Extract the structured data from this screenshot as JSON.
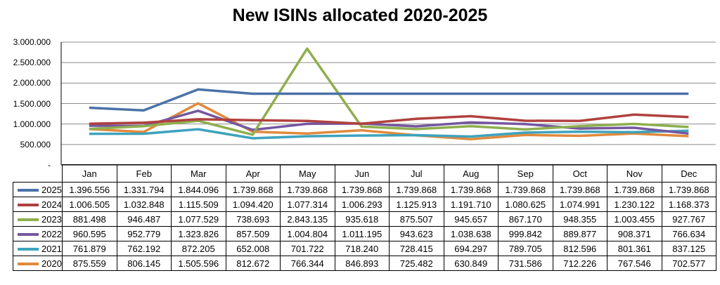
{
  "chart_data": {
    "type": "line",
    "title": "New ISINs allocated 2020-2025",
    "categories": [
      "Jan",
      "Feb",
      "Mar",
      "Apr",
      "May",
      "Jun",
      "Jul",
      "Aug",
      "Sep",
      "Oct",
      "Nov",
      "Dec"
    ],
    "ylim": [
      0,
      3000000
    ],
    "yticks": [
      0,
      500000,
      1000000,
      1500000,
      2000000,
      2500000,
      3000000
    ],
    "ytick_labels": [
      "-",
      "500.000",
      "1.000.000",
      "1.500.000",
      "2.000.000",
      "2.500.000",
      "3.000.000"
    ],
    "grid": true,
    "legend": "table",
    "series": [
      {
        "name": "2025",
        "color": "#4a72a8",
        "values": [
          1396556,
          1331794,
          1844096,
          1739868,
          1739868,
          1739868,
          1739868,
          1739868,
          1739868,
          1739868,
          1739868,
          1739868
        ],
        "labels": [
          "1.396.556",
          "1.331.794",
          "1.844.096",
          "1.739.868",
          "1.739.868",
          "1.739.868",
          "1.739.868",
          "1.739.868",
          "1.739.868",
          "1.739.868",
          "1.739.868",
          "1.739.868"
        ]
      },
      {
        "name": "2024",
        "color": "#b0413e",
        "values": [
          1006505,
          1032848,
          1115509,
          1094420,
          1077314,
          1006293,
          1125913,
          1191710,
          1080625,
          1074991,
          1230122,
          1168373
        ],
        "labels": [
          "1.006.505",
          "1.032.848",
          "1.115.509",
          "1.094.420",
          "1.077.314",
          "1.006.293",
          "1.125.913",
          "1.191.710",
          "1.080.625",
          "1.074.991",
          "1.230.122",
          "1.168.373"
        ]
      },
      {
        "name": "2023",
        "color": "#8eaf4e",
        "values": [
          881498,
          946487,
          1077529,
          738693,
          2843135,
          935618,
          875507,
          945657,
          867170,
          948355,
          1003455,
          927767
        ],
        "labels": [
          "881.498",
          "946.487",
          "1.077.529",
          "738.693",
          "2.843.135",
          "935.618",
          "875.507",
          "945.657",
          "867.170",
          "948.355",
          "1.003.455",
          "927.767"
        ]
      },
      {
        "name": "2022",
        "color": "#7457a0",
        "values": [
          960595,
          952779,
          1323826,
          857509,
          1004804,
          1011195,
          943623,
          1038638,
          999842,
          889877,
          908371,
          766634
        ],
        "labels": [
          "960.595",
          "952.779",
          "1.323.826",
          "857.509",
          "1.004.804",
          "1.011.195",
          "943.623",
          "1.038.638",
          "999.842",
          "889.877",
          "908.371",
          "766.634"
        ]
      },
      {
        "name": "2021",
        "color": "#3da3bd",
        "values": [
          761879,
          762192,
          872205,
          652008,
          701722,
          718240,
          728415,
          694297,
          789705,
          812596,
          801361,
          837125
        ],
        "labels": [
          "761.879",
          "762.192",
          "872.205",
          "652.008",
          "701.722",
          "718.240",
          "728.415",
          "694.297",
          "789.705",
          "812.596",
          "801.361",
          "837.125"
        ]
      },
      {
        "name": "2020",
        "color": "#e08a3c",
        "values": [
          875559,
          806145,
          1505596,
          812672,
          766344,
          846893,
          725482,
          630849,
          731586,
          712226,
          767546,
          702577
        ],
        "labels": [
          "875.559",
          "806.145",
          "1.505.596",
          "812.672",
          "766.344",
          "846.893",
          "725.482",
          "630.849",
          "731.586",
          "712.226",
          "767.546",
          "702.577"
        ]
      }
    ]
  }
}
